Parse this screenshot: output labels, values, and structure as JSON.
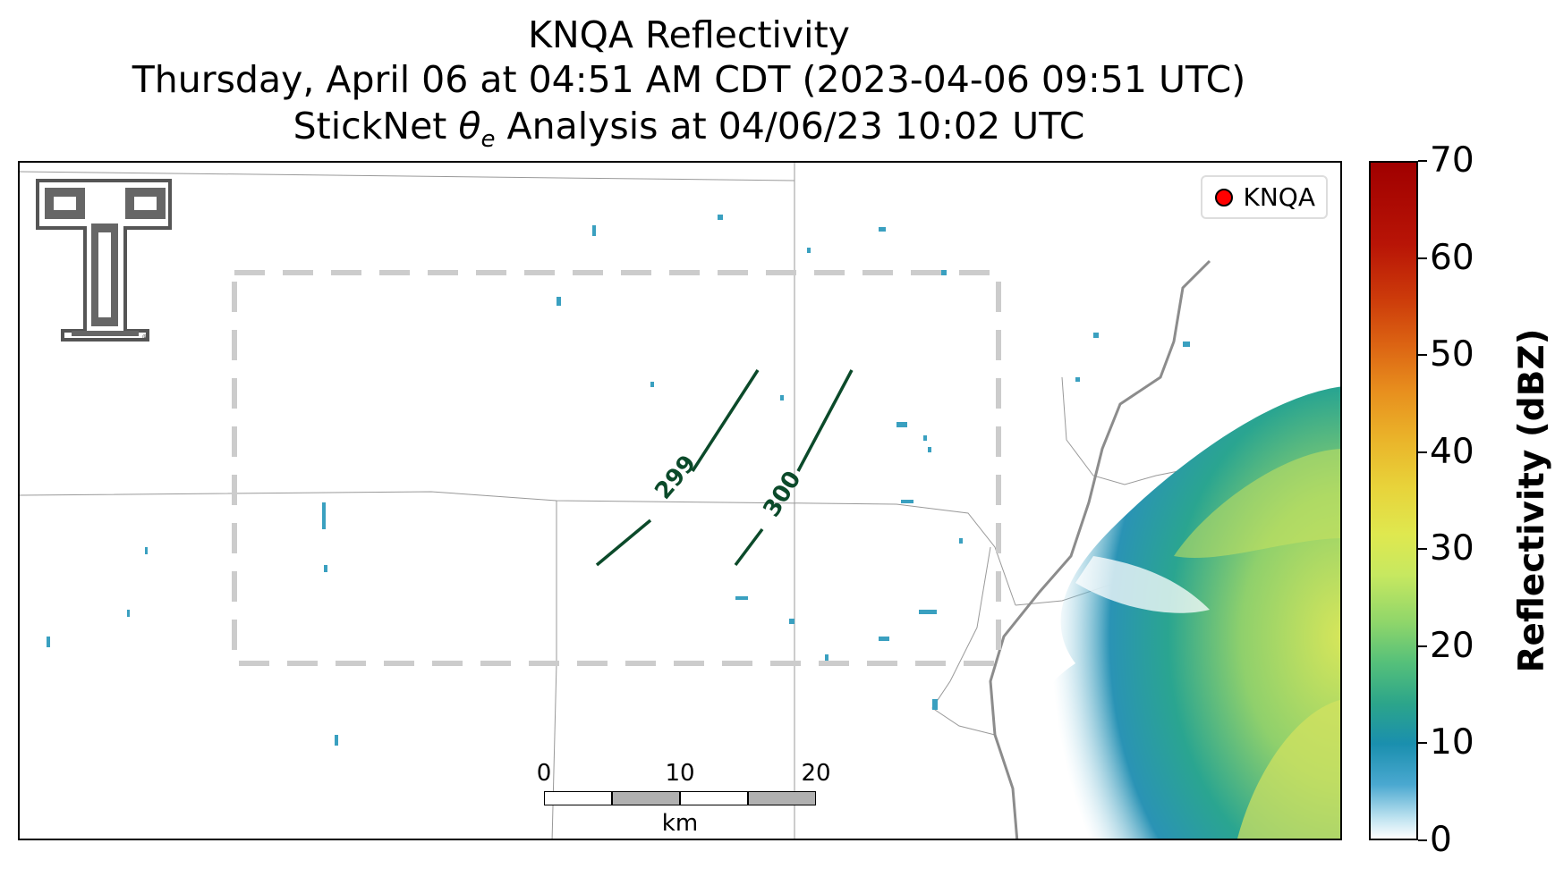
{
  "title": {
    "line1": "KNQA Reflectivity",
    "line2": "Thursday, April 06 at 04:51 AM CDT (2023-04-06 09:51 UTC)",
    "line3_prefix": "StickNet ",
    "line3_symbol": "θ",
    "line3_sub": "e",
    "line3_suffix": " Analysis at 04/06/23 10:02 UTC"
  },
  "legend": {
    "label": "KNQA",
    "marker_color": "#ff0000"
  },
  "colorbar": {
    "label": "Reflectivity (dBZ)",
    "ticks": [
      "0",
      "10",
      "20",
      "30",
      "40",
      "50",
      "60",
      "70"
    ],
    "range": [
      0,
      70
    ]
  },
  "contours": [
    {
      "label": "299",
      "color": "#0b4a2a"
    },
    {
      "label": "300",
      "color": "#0b4a2a"
    }
  ],
  "scalebar": {
    "ticks": [
      "0",
      "10",
      "20"
    ],
    "unit": "km"
  },
  "analysis_box_color": "#cccccc",
  "logo": "texas-tech-double-t-logo"
}
